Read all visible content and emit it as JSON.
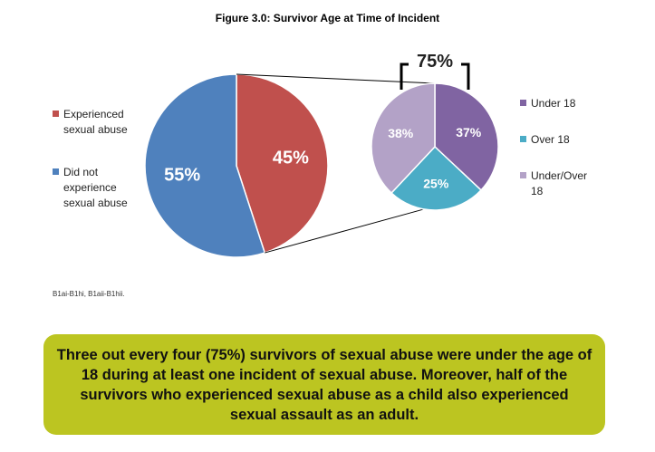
{
  "title": "Figure 3.0: Survivor Age at Time of Incident",
  "chart_data": [
    {
      "type": "pie",
      "categories": [
        "Experienced sexual abuse",
        "Did not experience sexual abuse"
      ],
      "values": [
        45,
        55
      ],
      "value_labels": [
        "45%",
        "55%"
      ],
      "colors": [
        "#c0504d",
        "#4f81bd"
      ],
      "legend": [
        {
          "label": "Experienced sexual abuse",
          "lines": [
            "Experienced",
            "sexual abuse"
          ],
          "color": "#c0504d"
        },
        {
          "label": "Did not experience sexual abuse",
          "lines": [
            "Did not",
            "experience",
            "sexual abuse"
          ],
          "color": "#4f81bd"
        }
      ],
      "legend_position": "left"
    },
    {
      "type": "pie",
      "categories": [
        "Under 18",
        "Over 18",
        "Under/Over 18"
      ],
      "values": [
        37,
        25,
        38
      ],
      "value_labels": [
        "37%",
        "25%",
        "38%"
      ],
      "colors": [
        "#8064a2",
        "#4bacc6",
        "#b3a2c7"
      ],
      "bracket_label": "75%",
      "legend": [
        {
          "label": "Under 18",
          "lines": [
            "Under 18"
          ],
          "color": "#8064a2"
        },
        {
          "label": "Over 18",
          "lines": [
            "Over 18"
          ],
          "color": "#4bacc6"
        },
        {
          "label": "Under/Over 18",
          "lines": [
            "Under/Over",
            "18"
          ],
          "color": "#b3a2c7"
        }
      ],
      "legend_position": "right"
    }
  ],
  "note": "B1ai-B1hi, B1aii-B1hii.",
  "callout": "Three out every four (75%) survivors of sexual abuse were under the age of 18 during at least one incident of sexual abuse.  Moreover, half of the survivors who experienced sexual abuse as a child also experienced sexual assault as an adult."
}
